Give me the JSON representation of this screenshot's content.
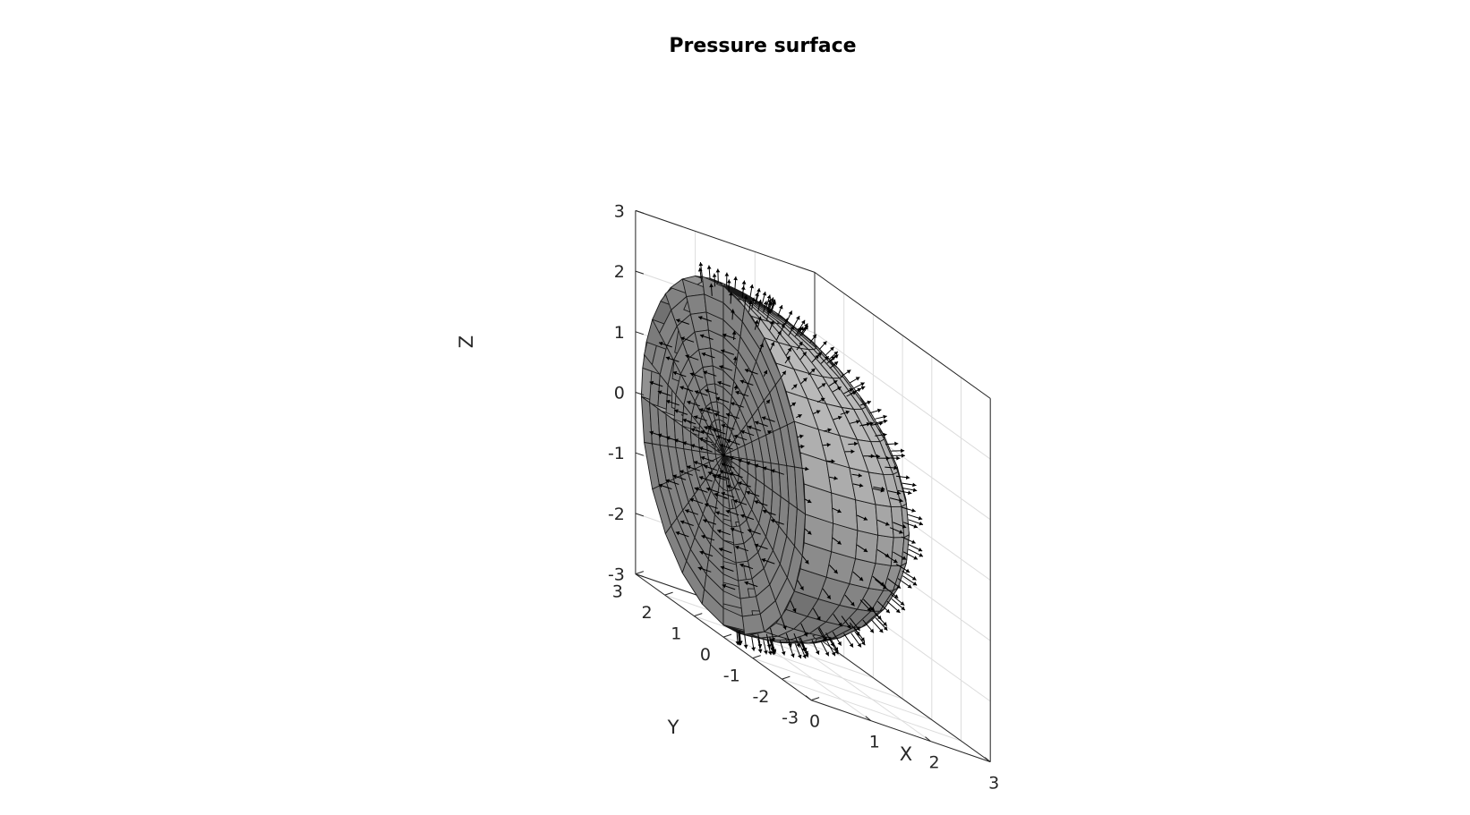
{
  "figure": {
    "title": "Pressure surface"
  },
  "chart_data": {
    "type": "surface",
    "title": "Pressure surface",
    "xlabel": "X",
    "ylabel": "Y",
    "zlabel": "Z",
    "xlim": [
      0,
      3
    ],
    "ylim": [
      -3,
      3
    ],
    "zlim": [
      -3,
      3
    ],
    "xticks": [
      "0",
      "1",
      "2",
      "3"
    ],
    "yticks": [
      "-3",
      "-2",
      "-1",
      "0",
      "1",
      "2",
      "3"
    ],
    "zticks": [
      "-3",
      "-2",
      "-1",
      "0",
      "1",
      "2",
      "3"
    ],
    "grid": true,
    "surface": {
      "shape": "quarter-cut hemisphere shell (x >= 0) with cut-away octant",
      "outer_radius": 2.8,
      "inner_radius": 2.3,
      "face_color": "#b4b4b4",
      "edge_color": "#1a1a1a"
    },
    "vectors": {
      "description": "pressure arrows normal to the surface",
      "color": "#000000"
    }
  }
}
